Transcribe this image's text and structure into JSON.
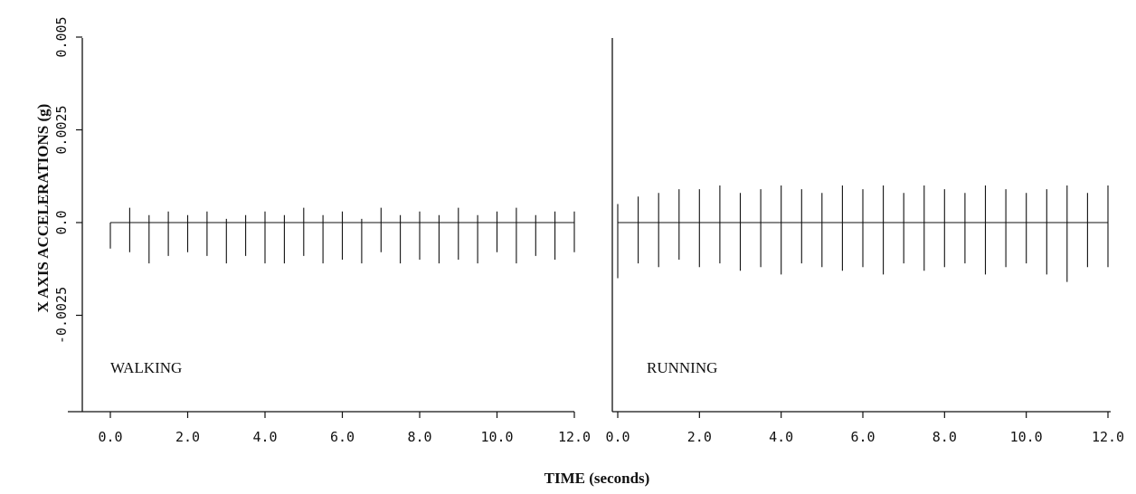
{
  "chart_data": [
    {
      "type": "line",
      "panel_label": "WALKING",
      "xlim": [
        0.0,
        12.0
      ],
      "ylim": [
        -0.005,
        0.005
      ],
      "x_ticks": [
        "0.0",
        "2.0",
        "4.0",
        "6.0",
        "8.0",
        "10.0",
        "12.0"
      ],
      "y_ticks": [
        "-0.0025",
        "0.0",
        "0.0025",
        "0.005"
      ],
      "series": [
        {
          "x": [
            0.0,
            0.5,
            1.0,
            1.5,
            2.0,
            2.5,
            3.0,
            3.5,
            4.0,
            4.5,
            5.0,
            5.5,
            6.0,
            6.5,
            7.0,
            7.5,
            8.0,
            8.5,
            9.0,
            9.5,
            10.0,
            10.5,
            11.0,
            11.5,
            12.0
          ],
          "y_high": [
            0.0,
            0.0004,
            0.0002,
            0.0003,
            0.0002,
            0.0003,
            0.0001,
            0.0002,
            0.0003,
            0.0002,
            0.0004,
            0.0002,
            0.0003,
            0.0001,
            0.0004,
            0.0002,
            0.0003,
            0.0002,
            0.0004,
            0.0002,
            0.0003,
            0.0004,
            0.0002,
            0.0003,
            0.0003
          ],
          "y_low": [
            -0.0007,
            -0.0008,
            -0.0011,
            -0.0009,
            -0.0008,
            -0.0009,
            -0.0011,
            -0.0009,
            -0.0011,
            -0.0011,
            -0.0009,
            -0.0011,
            -0.001,
            -0.0011,
            -0.0008,
            -0.0011,
            -0.001,
            -0.0011,
            -0.001,
            -0.0011,
            -0.0008,
            -0.0011,
            -0.0009,
            -0.001,
            -0.0008
          ]
        }
      ]
    },
    {
      "type": "line",
      "panel_label": "RUNNING",
      "xlim": [
        0.0,
        12.0
      ],
      "ylim": [
        -0.005,
        0.005
      ],
      "x_ticks": [
        "0.0",
        "2.0",
        "4.0",
        "6.0",
        "8.0",
        "10.0",
        "12.0"
      ],
      "y_ticks": [],
      "series": [
        {
          "x": [
            0.0,
            0.5,
            1.0,
            1.5,
            2.0,
            2.5,
            3.0,
            3.5,
            4.0,
            4.5,
            5.0,
            5.5,
            6.0,
            6.5,
            7.0,
            7.5,
            8.0,
            8.5,
            9.0,
            9.5,
            10.0,
            10.5,
            11.0,
            11.5,
            12.0
          ],
          "y_high": [
            0.0005,
            0.0007,
            0.0008,
            0.0009,
            0.0009,
            0.001,
            0.0008,
            0.0009,
            0.001,
            0.0009,
            0.0008,
            0.001,
            0.0009,
            0.001,
            0.0008,
            0.001,
            0.0009,
            0.0008,
            0.001,
            0.0009,
            0.0008,
            0.0009,
            0.001,
            0.0008,
            0.001
          ],
          "y_low": [
            -0.0015,
            -0.0011,
            -0.0012,
            -0.001,
            -0.0012,
            -0.0011,
            -0.0013,
            -0.0012,
            -0.0014,
            -0.0011,
            -0.0012,
            -0.0013,
            -0.0012,
            -0.0014,
            -0.0011,
            -0.0013,
            -0.0012,
            -0.0011,
            -0.0014,
            -0.0012,
            -0.0011,
            -0.0014,
            -0.0016,
            -0.0012,
            -0.0012
          ]
        }
      ]
    }
  ],
  "ylabel": "X AXIS ACCELERATIONS (g)",
  "xlabel": "TIME (seconds)"
}
